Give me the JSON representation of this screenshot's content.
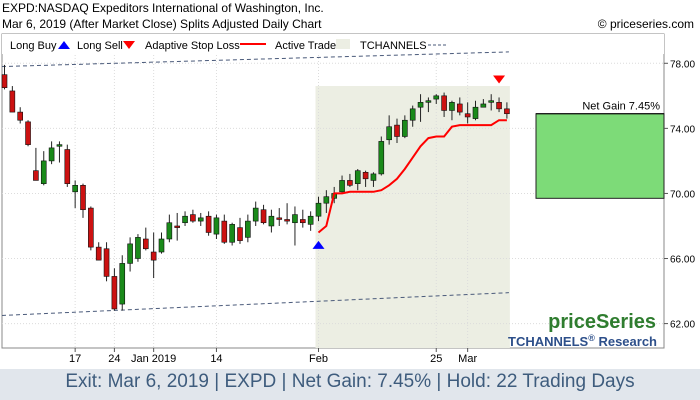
{
  "header": {
    "title": "EXPD:NASDAQ Expeditors International of Washington, Inc.",
    "subtitle": "Mar 6, 2019 (After Market Close)  Splits Adjusted Daily Chart",
    "copyright": "© priceseries.com"
  },
  "legend": [
    {
      "label": "Long Buy",
      "icon": "up-triangle-icon",
      "color": "#0000ff"
    },
    {
      "label": "Long Sell",
      "icon": "down-triangle-icon",
      "color": "#ff0000"
    },
    {
      "label": "Adaptive Stop Loss",
      "icon": "red-line-icon",
      "color": "#ff0000"
    },
    {
      "label": "Active Trade",
      "icon": "shaded-box-icon",
      "color": "#eceee3"
    },
    {
      "label": "TCHANNELS",
      "icon": "dashed-line-icon",
      "color": "#4a5a7a"
    }
  ],
  "brand": {
    "name": "priceSeries",
    "research": "TCHANNELS",
    "reg": "®",
    "research_suffix": " Research"
  },
  "footer": "Exit: Mar 6, 2019 | EXPD | Net Gain: 7.45% | Hold: 22 Trading Days",
  "chart_data": {
    "type": "candlestick",
    "y_axis": {
      "ticks": [
        "78.00",
        "74.00",
        "70.00",
        "66.00",
        "62.00"
      ],
      "values": [
        78,
        74,
        70,
        66,
        62
      ],
      "ylim": [
        60.5,
        79.8
      ]
    },
    "x_axis": {
      "ticks": [
        {
          "label": "17",
          "index": 9
        },
        {
          "label": "24",
          "index": 14
        },
        {
          "label": "Jan 2019",
          "index": 19
        },
        {
          "label": "14",
          "index": 27
        },
        {
          "label": "Feb",
          "index": 40
        },
        {
          "label": "25",
          "index": 55
        },
        {
          "label": "Mar",
          "index": 59
        }
      ]
    },
    "candles": [
      [
        77.3,
        77.9,
        76.4,
        76.5
      ],
      [
        76.3,
        76.6,
        75.0,
        75.0
      ],
      [
        75.0,
        75.3,
        74.3,
        74.5
      ],
      [
        74.4,
        74.5,
        72.9,
        73.0
      ],
      [
        71.4,
        72.8,
        70.8,
        70.8
      ],
      [
        70.6,
        72.6,
        70.5,
        72.0
      ],
      [
        72.0,
        73.2,
        71.8,
        72.8
      ],
      [
        72.9,
        73.2,
        71.9,
        73.0
      ],
      [
        72.7,
        73.0,
        70.4,
        70.6
      ],
      [
        70.1,
        70.8,
        69.1,
        70.5
      ],
      [
        70.5,
        70.6,
        68.5,
        69.0
      ],
      [
        69.1,
        69.2,
        66.5,
        66.7
      ],
      [
        66.7,
        67.0,
        65.9,
        65.9
      ],
      [
        66.6,
        67.0,
        64.6,
        64.9
      ],
      [
        64.9,
        65.4,
        62.8,
        62.9
      ],
      [
        63.2,
        66.2,
        62.8,
        65.7
      ],
      [
        65.7,
        67.3,
        65.2,
        66.9
      ],
      [
        66.0,
        67.5,
        65.8,
        67.3
      ],
      [
        67.2,
        67.9,
        66.5,
        66.6
      ],
      [
        66.4,
        67.6,
        64.8,
        65.9
      ],
      [
        66.4,
        67.6,
        66.3,
        67.2
      ],
      [
        67.2,
        68.7,
        67.0,
        68.2
      ],
      [
        68.0,
        68.8,
        67.1,
        67.9
      ],
      [
        68.2,
        68.9,
        68.0,
        68.6
      ],
      [
        68.7,
        69.0,
        68.2,
        68.3
      ],
      [
        68.3,
        68.8,
        68.0,
        68.5
      ],
      [
        68.6,
        68.9,
        67.4,
        67.6
      ],
      [
        67.5,
        68.7,
        67.2,
        68.5
      ],
      [
        68.3,
        68.7,
        66.9,
        67.0
      ],
      [
        67.0,
        68.2,
        66.8,
        68.1
      ],
      [
        67.9,
        68.5,
        66.9,
        67.1
      ],
      [
        67.3,
        68.7,
        67.0,
        68.3
      ],
      [
        68.3,
        69.5,
        68.0,
        69.1
      ],
      [
        69.0,
        69.3,
        68.1,
        68.2
      ],
      [
        68.0,
        69.0,
        67.6,
        68.6
      ],
      [
        68.5,
        69.1,
        68.0,
        68.4
      ],
      [
        68.4,
        69.4,
        68.1,
        68.3
      ],
      [
        68.2,
        69.2,
        66.8,
        68.7
      ],
      [
        68.4,
        69.0,
        67.9,
        68.2
      ],
      [
        68.1,
        68.9,
        67.7,
        68.6
      ],
      [
        68.6,
        69.8,
        68.3,
        69.4
      ],
      [
        69.4,
        70.2,
        68.8,
        69.8
      ],
      [
        69.7,
        70.4,
        69.4,
        70.0
      ],
      [
        70.1,
        71.1,
        70.0,
        70.8
      ],
      [
        70.8,
        71.2,
        70.4,
        70.5
      ],
      [
        70.6,
        71.5,
        70.2,
        71.4
      ],
      [
        71.3,
        71.4,
        70.4,
        70.9
      ],
      [
        70.8,
        71.3,
        70.4,
        71.2
      ],
      [
        71.2,
        73.5,
        71.1,
        73.2
      ],
      [
        73.3,
        74.8,
        73.0,
        74.1
      ],
      [
        74.2,
        74.6,
        73.1,
        73.5
      ],
      [
        73.5,
        74.8,
        73.4,
        74.5
      ],
      [
        74.5,
        75.4,
        74.1,
        75.2
      ],
      [
        75.3,
        76.1,
        74.4,
        75.6
      ],
      [
        75.6,
        75.9,
        75.0,
        75.7
      ],
      [
        75.8,
        76.1,
        75.5,
        76.0
      ],
      [
        76.0,
        76.2,
        74.7,
        75.1
      ],
      [
        75.1,
        75.7,
        74.5,
        75.6
      ],
      [
        75.5,
        75.9,
        74.8,
        75.0
      ],
      [
        74.9,
        75.6,
        74.3,
        74.7
      ],
      [
        74.6,
        75.7,
        74.5,
        75.3
      ],
      [
        75.3,
        75.8,
        75.3,
        75.5
      ],
      [
        75.6,
        76.1,
        75.1,
        75.7
      ],
      [
        75.6,
        75.9,
        75.0,
        75.2
      ],
      [
        75.2,
        75.6,
        74.6,
        74.9
      ]
    ],
    "trade_window": {
      "start_index": 40,
      "end_index": 64
    },
    "buy_signal": {
      "index": 40,
      "price": 66.9
    },
    "sell_signal": {
      "index": 63,
      "price": 77.0
    },
    "stop_loss": {
      "start_index": 40,
      "values": [
        67.6,
        68.0,
        70.0,
        70.0,
        70.1,
        70.1,
        70.1,
        70.1,
        70.2,
        70.5,
        70.9,
        71.5,
        72.2,
        72.9,
        73.4,
        73.5,
        73.5,
        74.1,
        74.2,
        74.2,
        74.2,
        74.2,
        74.2,
        74.5,
        74.5
      ]
    },
    "channel": {
      "upper": [
        77.8,
        78.7
      ],
      "lower": [
        62.5,
        63.9
      ]
    },
    "net_gain": {
      "label": "Net Gain 7.45%",
      "top": 74.9,
      "bottom": 69.7
    }
  }
}
